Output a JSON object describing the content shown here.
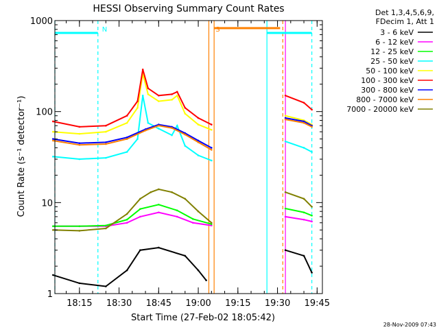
{
  "chart_data": {
    "type": "line",
    "title": "HESSI Observing Summary Count Rates",
    "xlabel": "Start Time (27-Feb-02 18:05:42)",
    "ylabel": "Count Rate (s⁻¹ detector⁻¹)",
    "xlim": [
      "18:05:42",
      "19:47:00"
    ],
    "ylim": [
      1,
      1000
    ],
    "yscale": "log",
    "x_ticks": [
      "18:15",
      "18:30",
      "18:45",
      "19:00",
      "19:15",
      "19:30",
      "19:45"
    ],
    "y_ticks": [
      {
        "value": 1,
        "label": "1"
      },
      {
        "value": 10,
        "label": "10"
      },
      {
        "value": 100,
        "label": "100"
      },
      {
        "value": 1000,
        "label": "1000"
      }
    ],
    "legend_title": [
      "Det 1,3,4,5,6,9,",
      "FDecim 1, Att 1"
    ],
    "legend_position": "right",
    "series": [
      {
        "name": "3 - 6 keV",
        "color": "#000000",
        "x": [
          "18:05",
          "18:15",
          "18:25",
          "18:33",
          "18:38",
          "18:45",
          "18:55",
          "19:00",
          "19:03",
          "19:33",
          "19:40",
          "19:43"
        ],
        "y": [
          1.6,
          1.3,
          1.2,
          1.8,
          3.0,
          3.2,
          2.6,
          1.8,
          1.4,
          3.0,
          2.6,
          1.7
        ]
      },
      {
        "name": "6 - 12 keV",
        "color": "#ff00ff",
        "x": [
          "18:05",
          "18:15",
          "18:25",
          "18:33",
          "18:38",
          "18:45",
          "18:52",
          "18:58",
          "19:05",
          "19:33",
          "19:40",
          "19:43"
        ],
        "y": [
          5.5,
          5.5,
          5.5,
          6.0,
          7.0,
          7.8,
          7.0,
          6.0,
          5.6,
          7.0,
          6.5,
          6.2
        ]
      },
      {
        "name": "12 - 25 keV",
        "color": "#00ff00",
        "x": [
          "18:05",
          "18:15",
          "18:25",
          "18:33",
          "18:38",
          "18:45",
          "18:52",
          "18:58",
          "19:05",
          "19:33",
          "19:40",
          "19:43"
        ],
        "y": [
          5.5,
          5.5,
          5.6,
          6.5,
          8.5,
          9.5,
          8.2,
          6.6,
          5.8,
          8.6,
          7.8,
          7.2
        ]
      },
      {
        "name": "25 - 50 keV",
        "color": "#00ffff",
        "x": [
          "18:05",
          "18:15",
          "18:25",
          "18:33",
          "18:37",
          "18:39",
          "18:41",
          "18:45",
          "18:50",
          "18:52",
          "18:55",
          "19:00",
          "19:05",
          "19:33",
          "19:40",
          "19:43"
        ],
        "y": [
          32,
          30,
          31,
          36,
          50,
          150,
          75,
          65,
          55,
          70,
          42,
          33,
          29,
          47,
          40,
          36
        ]
      },
      {
        "name": "50 - 100 keV",
        "color": "#ffff00",
        "x": [
          "18:05",
          "18:15",
          "18:25",
          "18:33",
          "18:37",
          "18:39",
          "18:41",
          "18:45",
          "18:50",
          "18:52",
          "18:55",
          "19:00",
          "19:05",
          "19:33",
          "19:40",
          "19:43"
        ],
        "y": [
          60,
          57,
          60,
          75,
          110,
          260,
          155,
          130,
          135,
          150,
          95,
          72,
          63,
          90,
          80,
          72
        ]
      },
      {
        "name": "100 - 300 keV",
        "color": "#ff0000",
        "x": [
          "18:05",
          "18:15",
          "18:25",
          "18:33",
          "18:37",
          "18:39",
          "18:41",
          "18:45",
          "18:50",
          "18:52",
          "18:55",
          "19:00",
          "19:05",
          "19:33",
          "19:40",
          "19:43"
        ],
        "y": [
          78,
          68,
          70,
          90,
          130,
          290,
          180,
          150,
          155,
          165,
          110,
          85,
          72,
          150,
          125,
          105
        ]
      },
      {
        "name": "300 - 800 keV",
        "color": "#0000ff",
        "x": [
          "18:05",
          "18:15",
          "18:25",
          "18:33",
          "18:40",
          "18:45",
          "18:50",
          "18:55",
          "19:00",
          "19:05",
          "19:33",
          "19:40",
          "19:43"
        ],
        "y": [
          50,
          45,
          46,
          52,
          64,
          72,
          68,
          58,
          48,
          40,
          85,
          78,
          70
        ]
      },
      {
        "name": "800 - 7000 keV",
        "color": "#ff8000",
        "x": [
          "18:05",
          "18:15",
          "18:25",
          "18:33",
          "18:40",
          "18:45",
          "18:50",
          "18:55",
          "19:00",
          "19:05",
          "19:33",
          "19:40",
          "19:43"
        ],
        "y": [
          48,
          43,
          44,
          50,
          62,
          70,
          66,
          56,
          46,
          38,
          82,
          75,
          68
        ]
      },
      {
        "name": "7000 - 20000 keV",
        "color": "#808000",
        "x": [
          "18:05",
          "18:15",
          "18:25",
          "18:33",
          "18:38",
          "18:42",
          "18:45",
          "18:50",
          "18:55",
          "19:00",
          "19:05",
          "19:33",
          "19:40",
          "19:43"
        ],
        "y": [
          5.0,
          4.9,
          5.2,
          7.5,
          11,
          13,
          14,
          13,
          11,
          8,
          6,
          13,
          11,
          9
        ]
      }
    ],
    "annotations": [
      {
        "text": "N",
        "color": "#00ffff",
        "x": "18:22"
      },
      {
        "text": "S",
        "color": "#ff8000",
        "x": "19:05"
      }
    ],
    "marker_lines": [
      {
        "x": "18:05:42",
        "color": "#00ffff",
        "style": "dashed"
      },
      {
        "x": "18:22",
        "color": "#00ffff",
        "style": "dashed"
      },
      {
        "x": "19:04",
        "color": "#ff8000",
        "style": "solid"
      },
      {
        "x": "19:06",
        "color": "#ff8000",
        "style": "solid"
      },
      {
        "x": "19:26",
        "color": "#00ffff",
        "style": "solid"
      },
      {
        "x": "19:32",
        "color": "#ff8000",
        "style": "dashed"
      },
      {
        "x": "19:33",
        "color": "#ff00ff",
        "style": "solid"
      },
      {
        "x": "19:43",
        "color": "#00ffff",
        "style": "dashed"
      }
    ],
    "bars_top": [
      {
        "color": "#00ffff",
        "from": "18:05:42",
        "to": "18:22"
      },
      {
        "color": "#ff8000",
        "from": "19:06",
        "to": "19:31"
      },
      {
        "color": "#00ffff",
        "from": "19:26",
        "to": "19:43"
      }
    ]
  },
  "footer": {
    "timestamp": "28-Nov-2009 07:43"
  }
}
